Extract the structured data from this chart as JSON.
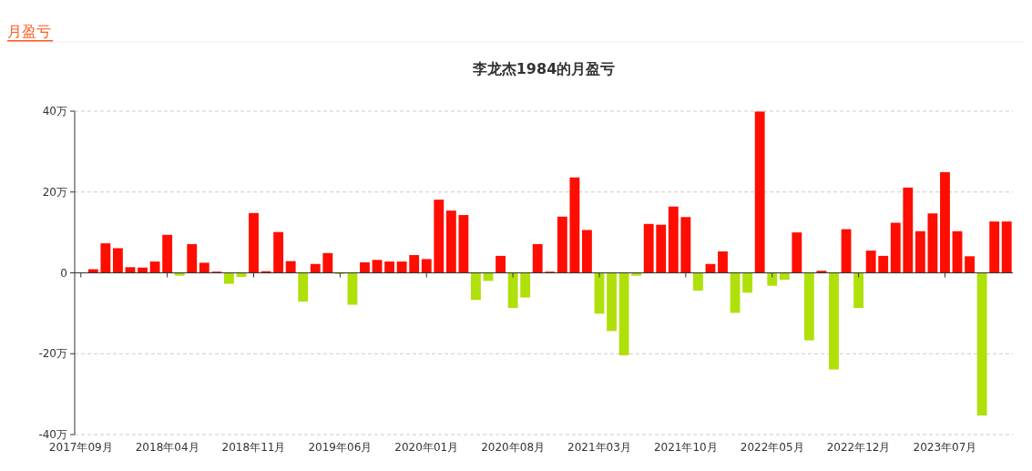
{
  "chart_data": {
    "type": "bar",
    "title": "李龙杰1984的月盈亏",
    "annotations": [
      "月盈亏"
    ],
    "categories": [
      "2017年09月",
      null,
      null,
      null,
      null,
      null,
      null,
      "2018年04月",
      null,
      null,
      null,
      null,
      null,
      null,
      "2018年11月",
      null,
      null,
      null,
      null,
      null,
      null,
      "2019年06月",
      null,
      null,
      null,
      null,
      null,
      null,
      "2020年01月",
      null,
      null,
      null,
      null,
      null,
      null,
      "2020年08月",
      null,
      null,
      null,
      null,
      null,
      null,
      "2021年03月",
      null,
      null,
      null,
      null,
      null,
      null,
      "2021年10月",
      null,
      null,
      null,
      null,
      null,
      null,
      "2022年05月",
      null,
      null,
      null,
      null,
      null,
      null,
      "2022年12月",
      null,
      null,
      null,
      null,
      null,
      null,
      "2023年07月",
      null,
      null,
      null,
      null,
      null
    ],
    "values": [
      null,
      0.9,
      7.3,
      6.1,
      1.4,
      1.3,
      2.8,
      9.4,
      -0.7,
      7.1,
      2.5,
      0.3,
      -2.7,
      -1.0,
      14.8,
      0.4,
      10.1,
      2.9,
      -7.1,
      2.2,
      4.9,
      -0.3,
      -7.9,
      2.6,
      3.2,
      2.8,
      2.8,
      4.4,
      3.4,
      18.1,
      15.4,
      14.3,
      -6.7,
      -2.0,
      4.2,
      -8.7,
      -6.1,
      7.1,
      0.3,
      13.9,
      23.6,
      10.6,
      -10.1,
      -14.4,
      -20.4,
      -0.7,
      12.1,
      11.9,
      16.4,
      13.8,
      -4.4,
      2.2,
      5.3,
      -9.9,
      -4.9,
      39.9,
      -3.2,
      -1.7,
      10.0,
      -16.7,
      0.5,
      -23.9,
      10.8,
      -8.7,
      5.5,
      4.2,
      12.4,
      21.1,
      10.3,
      14.7,
      24.9,
      10.3,
      4.1,
      -35.3,
      12.7,
      12.7
    ],
    "colors": [
      null,
      "#ff0d00",
      "#ff0d00",
      "#ff0d00",
      "#ff0d00",
      "#ff0d00",
      "#ff0d00",
      "#ff0d00",
      "#b0e00a",
      "#ff0d00",
      "#ff0d00",
      "#ff0d00",
      "#b0e00a",
      "#b0e00a",
      "#ff0d00",
      "#ff0d00",
      "#ff0d00",
      "#ff0d00",
      "#b0e00a",
      "#ff0d00",
      "#ff0d00",
      "#b0e00a",
      "#b0e00a",
      "#ff0d00",
      "#ff0d00",
      "#ff0d00",
      "#ff0d00",
      "#ff0d00",
      "#ff0d00",
      "#ff0d00",
      "#ff0d00",
      "#ff0d00",
      "#b0e00a",
      "#b0e00a",
      "#ff0d00",
      "#b0e00a",
      "#b0e00a",
      "#ff0d00",
      "#ff0d00",
      "#ff0d00",
      "#ff0d00",
      "#ff0d00",
      "#b0e00a",
      "#b0e00a",
      "#b0e00a",
      "#b0e00a",
      "#ff0d00",
      "#ff0d00",
      "#ff0d00",
      "#ff0d00",
      "#b0e00a",
      "#ff0d00",
      "#ff0d00",
      "#b0e00a",
      "#b0e00a",
      "#ff0d00",
      "#b0e00a",
      "#b0e00a",
      "#ff0d00",
      "#b0e00a",
      "#ff0d00",
      "#b0e00a",
      "#ff0d00",
      "#b0e00a",
      "#ff0d00",
      "#ff0d00",
      "#ff0d00",
      "#ff0d00",
      "#ff0d00",
      "#ff0d00",
      "#ff0d00",
      "#ff0d00",
      "#ff0d00",
      "#b0e00a",
      "#ff0d00",
      "#ff0d00"
    ],
    "ylim": [
      -40,
      40
    ],
    "yticks": [
      {
        "value": -40,
        "label": "-40万"
      },
      {
        "value": -20,
        "label": "-20万"
      },
      0,
      {
        "value": 20,
        "label": "20万"
      },
      {
        "value": 40,
        "label": "40万"
      }
    ],
    "grid": "y"
  }
}
